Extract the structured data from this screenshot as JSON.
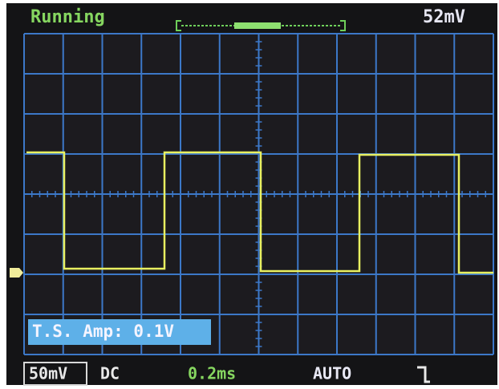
{
  "status": "Running",
  "readout": "52mV",
  "overlay": "T.S. Amp: 0.1V",
  "footer": {
    "volts_div": "50mV",
    "coupling": "DC",
    "time_div": "0.2ms",
    "trigger_mode": "AUTO"
  }
}
